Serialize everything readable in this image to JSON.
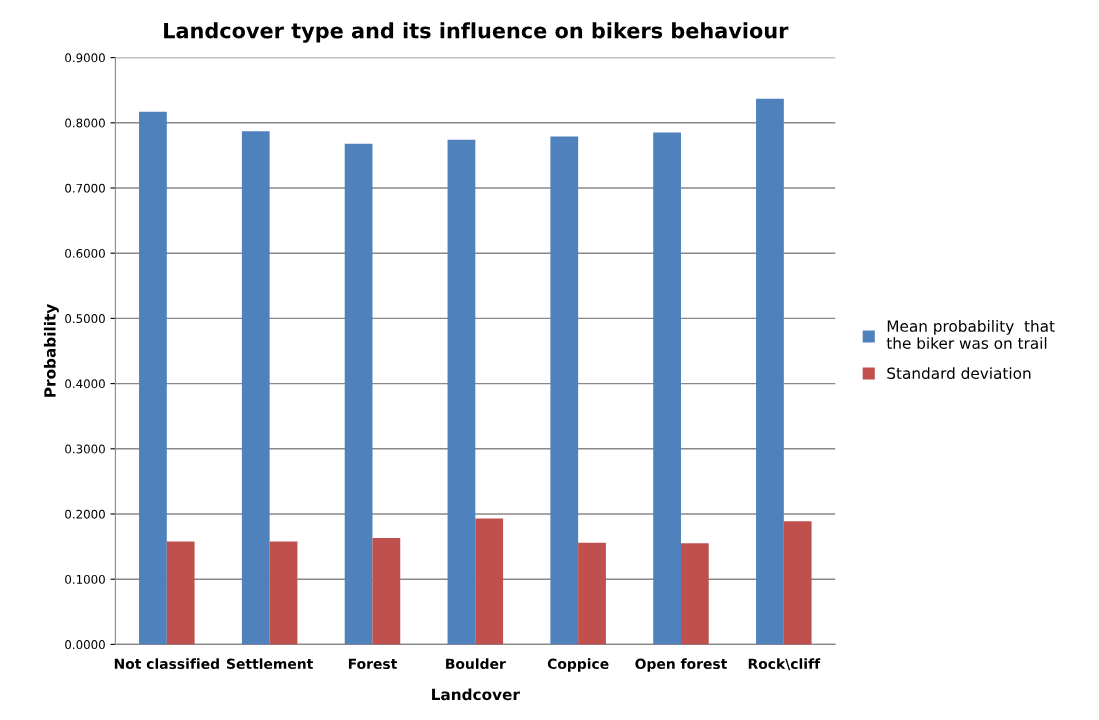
{
  "chart_data": {
    "type": "bar",
    "title": "Landcover type and its influence on bikers behaviour",
    "xlabel": "Landcover",
    "ylabel": "Probability",
    "categories": [
      "Not classified",
      "Settlement",
      "Forest",
      "Boulder",
      "Coppice",
      "Open forest",
      "Rock\\cliff"
    ],
    "series": [
      {
        "name": "Mean probability  that the biker was on trail",
        "color": "#4f81bd",
        "values": [
          0.817,
          0.787,
          0.768,
          0.774,
          0.779,
          0.785,
          0.837
        ]
      },
      {
        "name": "Standard deviation",
        "color": "#c0504d",
        "values": [
          0.158,
          0.158,
          0.163,
          0.193,
          0.156,
          0.155,
          0.189
        ]
      }
    ],
    "ylim": [
      0,
      0.9
    ],
    "yticks": [
      {
        "value": 0,
        "label": "0.0000"
      },
      {
        "value": 0.1,
        "label": "0.1000"
      },
      {
        "value": 0.2,
        "label": "0.2000"
      },
      {
        "value": 0.3,
        "label": "0.3000"
      },
      {
        "value": 0.4,
        "label": "0.4000"
      },
      {
        "value": 0.5,
        "label": "0.5000"
      },
      {
        "value": 0.6,
        "label": "0.6000"
      },
      {
        "value": 0.7,
        "label": "0.7000"
      },
      {
        "value": 0.8,
        "label": "0.8000"
      },
      {
        "value": 0.9,
        "label": "0.9000"
      }
    ],
    "grid": "y",
    "legend": "right"
  }
}
